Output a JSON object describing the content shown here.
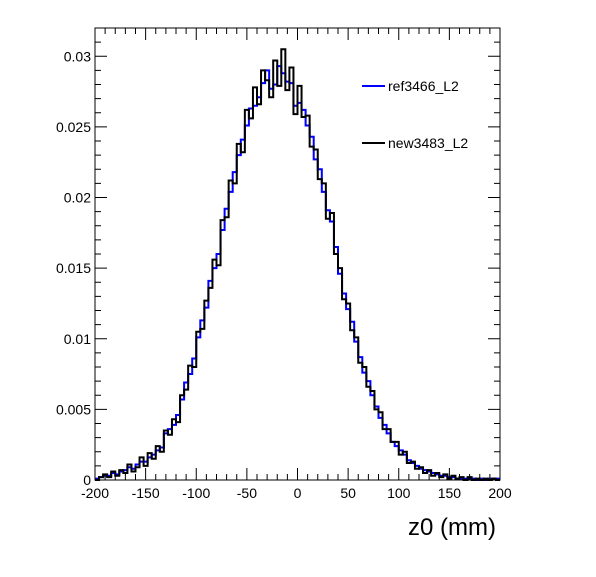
{
  "chart_data": {
    "type": "histogram-step",
    "title": "",
    "xlabel": "z0 (mm)",
    "ylabel": "",
    "xlim": [
      -200,
      200
    ],
    "ylim": [
      0,
      0.032
    ],
    "x_ticks": [
      -200,
      -150,
      -100,
      -50,
      0,
      50,
      100,
      150,
      200
    ],
    "x_tick_labels": [
      "-200",
      "-150",
      "-100",
      "-50",
      "0",
      "50",
      "100",
      "150",
      "200"
    ],
    "y_ticks": [
      0,
      0.005,
      0.01,
      0.015,
      0.02,
      0.025,
      0.03
    ],
    "y_tick_labels": [
      "0",
      "0.005",
      "0.01",
      "0.015",
      "0.02",
      "0.025",
      "0.03"
    ],
    "grid": false,
    "legend_position": "top-right",
    "bin_edges_start": -200,
    "bin_width": 4,
    "series": [
      {
        "name": "ref3466_L2",
        "color": "#0000ff",
        "values": [
          0.0001,
          0.0002,
          0.0003,
          0.0003,
          0.0005,
          0.0004,
          0.0006,
          0.0007,
          0.0009,
          0.0008,
          0.0011,
          0.0013,
          0.0013,
          0.0016,
          0.0018,
          0.0021,
          0.0023,
          0.0033,
          0.0036,
          0.0039,
          0.0046,
          0.0057,
          0.0069,
          0.0075,
          0.0086,
          0.0101,
          0.0113,
          0.0122,
          0.0141,
          0.015,
          0.016,
          0.0177,
          0.0192,
          0.0204,
          0.0218,
          0.023,
          0.0241,
          0.0251,
          0.0263,
          0.0265,
          0.0271,
          0.0281,
          0.029,
          0.0277,
          0.028,
          0.0293,
          0.0288,
          0.0282,
          0.0281,
          0.0265,
          0.0267,
          0.0262,
          0.0251,
          0.0243,
          0.0227,
          0.022,
          0.0204,
          0.0191,
          0.0183,
          0.0165,
          0.0146,
          0.0132,
          0.0121,
          0.0112,
          0.0098,
          0.0087,
          0.0076,
          0.007,
          0.006,
          0.0052,
          0.0044,
          0.0039,
          0.0033,
          0.0027,
          0.0024,
          0.0021,
          0.0018,
          0.0014,
          0.0012,
          0.001,
          0.0008,
          0.0007,
          0.0006,
          0.0005,
          0.0004,
          0.0003,
          0.0003,
          0.0002,
          0.0002,
          0.0001,
          0.0001,
          0.0001,
          0.0001,
          0.0001,
          0.0,
          0.0001,
          0.0,
          0.0001,
          0.0001,
          0.0001
        ]
      },
      {
        "name": "new3483_L2",
        "color": "#000000",
        "values": [
          0.0,
          0.0002,
          0.0004,
          0.0002,
          0.0006,
          0.0003,
          0.0007,
          0.0005,
          0.0011,
          0.0006,
          0.0009,
          0.0016,
          0.001,
          0.0019,
          0.0015,
          0.0024,
          0.002,
          0.0035,
          0.0032,
          0.0043,
          0.0041,
          0.006,
          0.0064,
          0.0081,
          0.008,
          0.0105,
          0.0107,
          0.0127,
          0.0136,
          0.0156,
          0.0152,
          0.0184,
          0.0186,
          0.0212,
          0.021,
          0.0238,
          0.0232,
          0.0262,
          0.0256,
          0.0278,
          0.0266,
          0.029,
          0.0283,
          0.0271,
          0.0297,
          0.0279,
          0.0305,
          0.0276,
          0.0292,
          0.0259,
          0.0279,
          0.0257,
          0.0258,
          0.0236,
          0.0234,
          0.0213,
          0.021,
          0.0185,
          0.0189,
          0.016,
          0.015,
          0.0128,
          0.0125,
          0.0106,
          0.0101,
          0.0083,
          0.008,
          0.0066,
          0.0063,
          0.005,
          0.0048,
          0.0036,
          0.0036,
          0.0027,
          0.0027,
          0.0018,
          0.002,
          0.0012,
          0.0013,
          0.0008,
          0.0009,
          0.0005,
          0.0007,
          0.0003,
          0.0005,
          0.0002,
          0.0004,
          0.0001,
          0.0003,
          0.0001,
          0.0002,
          0.0,
          0.0002,
          0.0,
          0.0001,
          0.0,
          0.0001,
          0.0,
          0.0001,
          0.0
        ]
      }
    ]
  }
}
